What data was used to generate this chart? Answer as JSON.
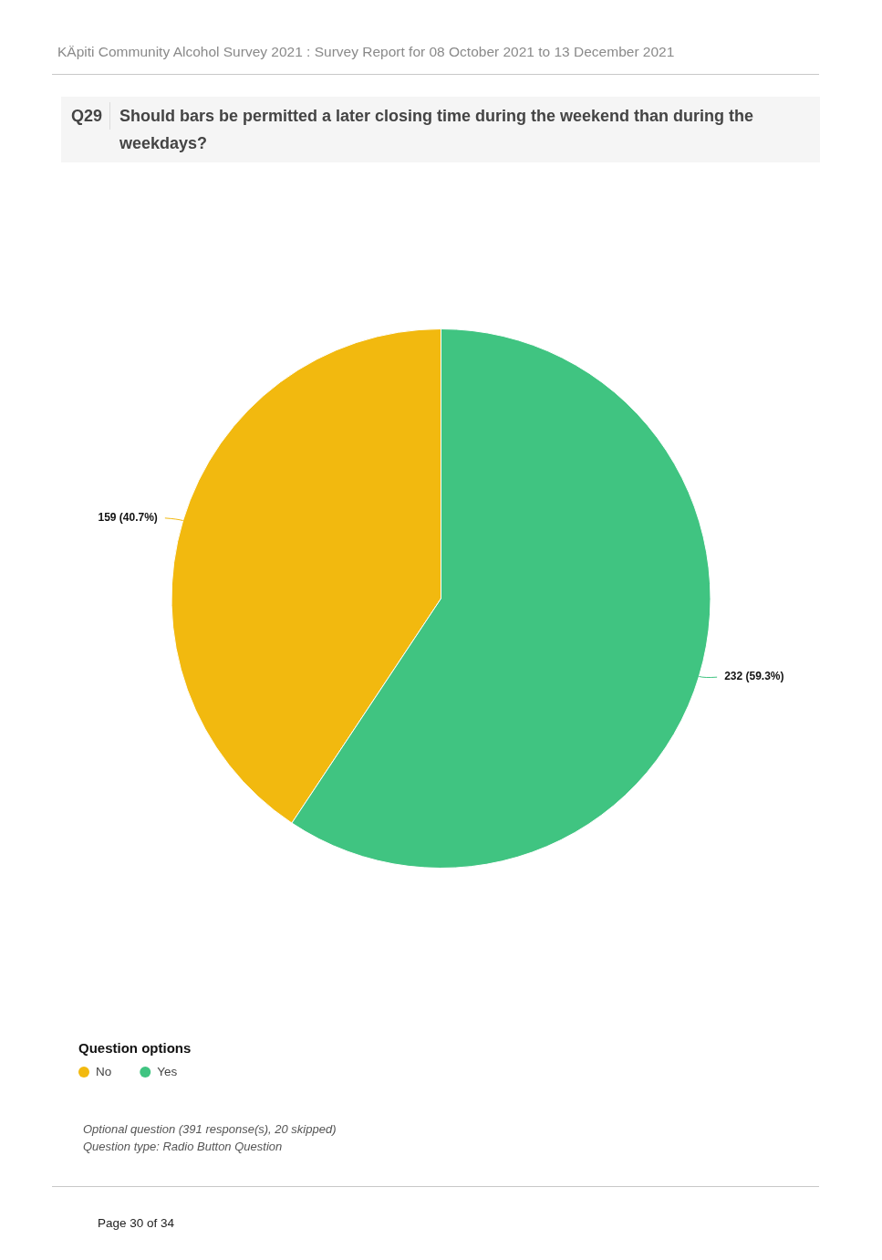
{
  "chart_data": {
    "type": "pie",
    "title": "Should bars be permitted a later closing time during the weekend than during the weekdays?",
    "categories": [
      "No",
      "Yes"
    ],
    "values": [
      159,
      232
    ],
    "colors": [
      "#f2b90f",
      "#40c481"
    ],
    "value_labels": [
      "159 (40.7%)",
      "232 (59.3%)"
    ],
    "legend_title": "Question options",
    "legend": "bottom left",
    "annotations": [
      "KÄpiti Community Alcohol Survey 2021 : Survey Report for 08 October 2021 to 13 December 2021",
      "Q29",
      "Optional question (391 response(s), 20 skipped)",
      "Question type: Radio Button Question",
      "Page 30 of 34"
    ]
  }
}
